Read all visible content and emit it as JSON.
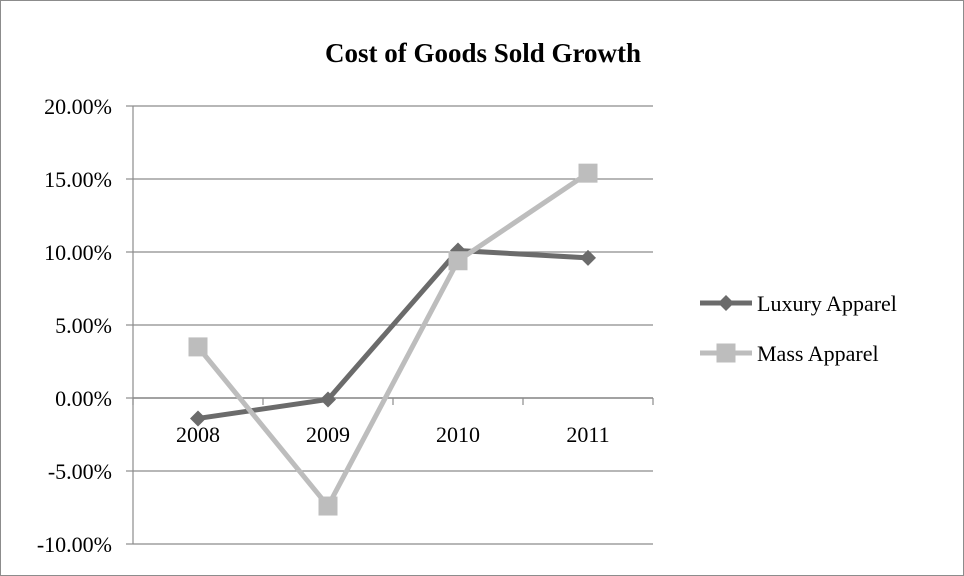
{
  "chart_data": {
    "type": "line",
    "title": "Cost of Goods Sold Growth",
    "xlabel": "",
    "ylabel": "",
    "categories": [
      "2008",
      "2009",
      "2010",
      "2011"
    ],
    "ylim": [
      -0.1,
      0.2
    ],
    "ytick_step": 0.05,
    "y_tick_labels": [
      "20.00%",
      "15.00%",
      "10.00%",
      "5.00%",
      "0.00%",
      "-5.00%",
      "-10.00%"
    ],
    "grid": "horizontal",
    "legend_position": "right",
    "series": [
      {
        "name": "Luxury Apparel",
        "values": [
          -0.014,
          -0.001,
          0.101,
          0.096
        ],
        "color": "#6b6b6b",
        "marker": "diamond"
      },
      {
        "name": "Mass Apparel",
        "values": [
          0.035,
          -0.074,
          0.094,
          0.154
        ],
        "color": "#bdbdbd",
        "marker": "square"
      }
    ]
  }
}
